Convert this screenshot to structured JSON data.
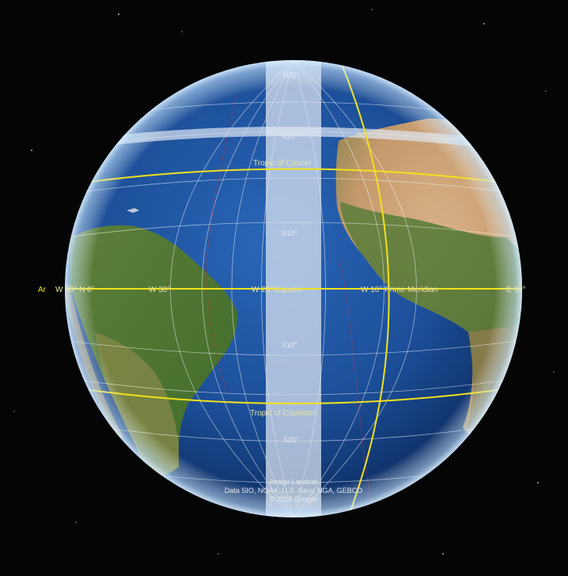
{
  "map": {
    "view": "globe",
    "colors": {
      "space": "#050506",
      "ocean": "#1d4f9a",
      "graticule": "#ffffff",
      "special_lines": "#f2e11c",
      "border": "#c2313a",
      "highlight_band": "#dfe7f3"
    },
    "left_label": "Ar",
    "equator_labels": {
      "w40": "W 40° N 0°",
      "w30": "W 30°",
      "w20_equator": "W 20° Equator",
      "w10_prime_meridian": "W 10° Prime Meridian",
      "e10": "E 10°"
    },
    "latitude_labels": {
      "n30": "N30°",
      "n20": "N20°",
      "n10": "N10°",
      "s10": "S10°",
      "s20": "S20°"
    },
    "line_labels": {
      "tropic_cancer": "Tropic of Cancer",
      "tropic_capricorn": "Tropic of Capricorn"
    },
    "attribution": {
      "line1": "Image Landsat",
      "line2": "Data SIO, NOAA, U.S. Navy, NGA, GEBCO",
      "line3": "© 2018 Google"
    }
  }
}
